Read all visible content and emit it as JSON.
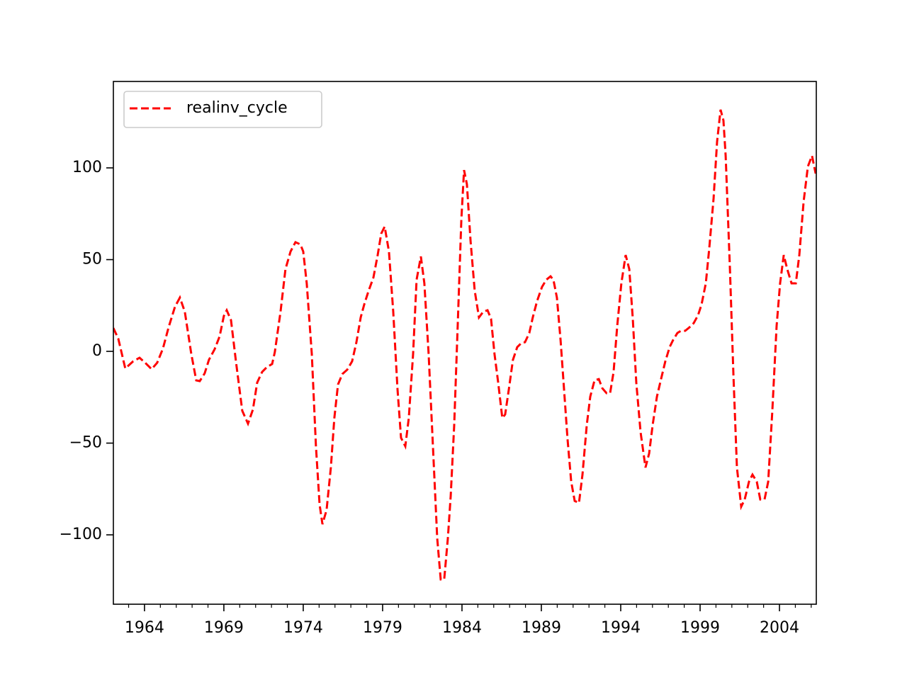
{
  "chart_data": {
    "type": "line",
    "legend": "upper left",
    "series": [
      {
        "name": "realinv_cycle",
        "color": "#ff0000",
        "dashed": true,
        "x": [
          1962.04,
          1962.35,
          1962.79,
          1963.29,
          1963.69,
          1964.04,
          1964.45,
          1964.8,
          1965.16,
          1965.52,
          1965.92,
          1966.23,
          1966.54,
          1966.95,
          1967.26,
          1967.48,
          1967.79,
          1968.06,
          1968.42,
          1968.73,
          1969.0,
          1969.18,
          1969.45,
          1969.76,
          1970.16,
          1970.52,
          1970.83,
          1971.1,
          1971.41,
          1971.72,
          1972.04,
          1972.21,
          1972.57,
          1972.88,
          1973.2,
          1973.51,
          1973.82,
          1974.0,
          1974.22,
          1974.54,
          1974.8,
          1975.03,
          1975.21,
          1975.47,
          1975.74,
          1975.96,
          1976.19,
          1976.46,
          1976.77,
          1977.08,
          1977.35,
          1977.62,
          1977.84,
          1978.11,
          1978.42,
          1978.69,
          1978.91,
          1979.13,
          1979.4,
          1979.67,
          1979.94,
          1980.16,
          1980.43,
          1980.65,
          1980.92,
          1981.14,
          1981.41,
          1981.63,
          1981.9,
          1982.17,
          1982.44,
          1982.66,
          1982.88,
          1983.11,
          1983.29,
          1983.51,
          1983.73,
          1983.96,
          1984.13,
          1984.31,
          1984.54,
          1984.8,
          1985.07,
          1985.34,
          1985.61,
          1985.83,
          1986.05,
          1986.28,
          1986.54,
          1986.72,
          1986.95,
          1987.21,
          1987.48,
          1987.75,
          1987.97,
          1988.24,
          1988.46,
          1988.73,
          1989.04,
          1989.31,
          1989.58,
          1989.76,
          1989.98,
          1990.21,
          1990.43,
          1990.65,
          1990.88,
          1991.1,
          1991.37,
          1991.59,
          1991.86,
          1992.08,
          1992.35,
          1992.62,
          1992.84,
          1993.11,
          1993.33,
          1993.55,
          1993.78,
          1994.04,
          1994.31,
          1994.54,
          1994.76,
          1994.98,
          1995.25,
          1995.56,
          1995.79,
          1996.01,
          1996.28,
          1996.54,
          1996.81,
          1997.08,
          1997.3,
          1997.57,
          1997.79,
          1998.06,
          1998.33,
          1998.6,
          1998.87,
          1999.09,
          1999.36,
          1999.58,
          1999.85,
          2000.07,
          2000.29,
          2000.47,
          2000.61,
          2000.88,
          2001.1,
          2001.32,
          2001.59,
          2001.81,
          2002.08,
          2002.3,
          2002.57,
          2002.79,
          2003.06,
          2003.29,
          2003.55,
          2003.82,
          2004.04,
          2004.27,
          2004.49,
          2004.76,
          2005.03,
          2005.25,
          2005.52,
          2005.79,
          2006.05,
          2006.28
        ],
        "values": [
          12.7,
          6.9,
          -9.3,
          -5.4,
          -3.5,
          -6.2,
          -9.7,
          -6.2,
          1.5,
          13.1,
          24.3,
          29.3,
          21.6,
          -1.5,
          -15.8,
          -16.2,
          -12.0,
          -4.6,
          1.2,
          8.1,
          19.3,
          22.4,
          17.0,
          -5.4,
          -32.4,
          -39.4,
          -31.7,
          -17.0,
          -11.2,
          -8.5,
          -6.9,
          -0.4,
          21.6,
          44.8,
          54.4,
          59.5,
          58.3,
          54.4,
          37.1,
          -1.5,
          -51.7,
          -83.4,
          -94.2,
          -86.5,
          -63.3,
          -36.3,
          -18.1,
          -12.4,
          -10.0,
          -5.4,
          5.0,
          18.5,
          25.5,
          32.8,
          40.2,
          52.5,
          64.1,
          68.0,
          54.4,
          21.6,
          -20.8,
          -47.1,
          -51.7,
          -36.3,
          -1.5,
          39.0,
          51.7,
          37.1,
          -1.5,
          -51.7,
          -101.9,
          -124.3,
          -124.3,
          -101.9,
          -78.8,
          -40.2,
          13.9,
          71.8,
          98.8,
          91.1,
          60.2,
          33.2,
          18.5,
          21.6,
          22.4,
          17.8,
          -1.5,
          -17.0,
          -36.3,
          -34.4,
          -20.8,
          -4.6,
          2.3,
          4.6,
          5.0,
          10.0,
          18.5,
          27.4,
          35.1,
          39.0,
          40.9,
          39.0,
          29.3,
          6.2,
          -20.8,
          -47.9,
          -71.0,
          -81.5,
          -82.6,
          -67.2,
          -40.2,
          -24.7,
          -15.8,
          -15.1,
          -20.1,
          -22.8,
          -22.8,
          -11.2,
          13.9,
          37.1,
          52.5,
          44.8,
          17.8,
          -17.0,
          -44.0,
          -63.3,
          -55.6,
          -40.2,
          -24.7,
          -15.1,
          -5.4,
          2.3,
          6.2,
          10.0,
          11.2,
          11.2,
          13.1,
          15.4,
          19.7,
          25.5,
          37.1,
          56.4,
          83.4,
          114.3,
          131.7,
          125.9,
          106.6,
          44.8,
          -13.1,
          -63.3,
          -84.6,
          -80.7,
          -71.0,
          -67.2,
          -71.0,
          -80.7,
          -80.7,
          -71.0,
          -32.4,
          13.9,
          37.1,
          52.5,
          44.8,
          37.1,
          37.1,
          52.5,
          81.5,
          100.8,
          106.6,
          96.9
        ]
      }
    ],
    "xlim": [
      1962.04,
      2006.32
    ],
    "xticks": [
      1964,
      1969,
      1974,
      1979,
      1984,
      1989,
      1994,
      1999,
      2004
    ],
    "xminorticks": [
      1963,
      1965,
      1966,
      1967,
      1968,
      1970,
      1971,
      1972,
      1973,
      1975,
      1976,
      1977,
      1978,
      1980,
      1981,
      1982,
      1983,
      1985,
      1986,
      1987,
      1988,
      1990,
      1991,
      1992,
      1993,
      1995,
      1996,
      1997,
      1998,
      2000,
      2001,
      2002,
      2003,
      2005,
      2006
    ],
    "ylim": [
      -137.8,
      147.1
    ],
    "yticks": [
      {
        "value": -100,
        "label": "−100"
      },
      {
        "value": -50,
        "label": "−50"
      },
      0,
      50,
      100
    ]
  }
}
